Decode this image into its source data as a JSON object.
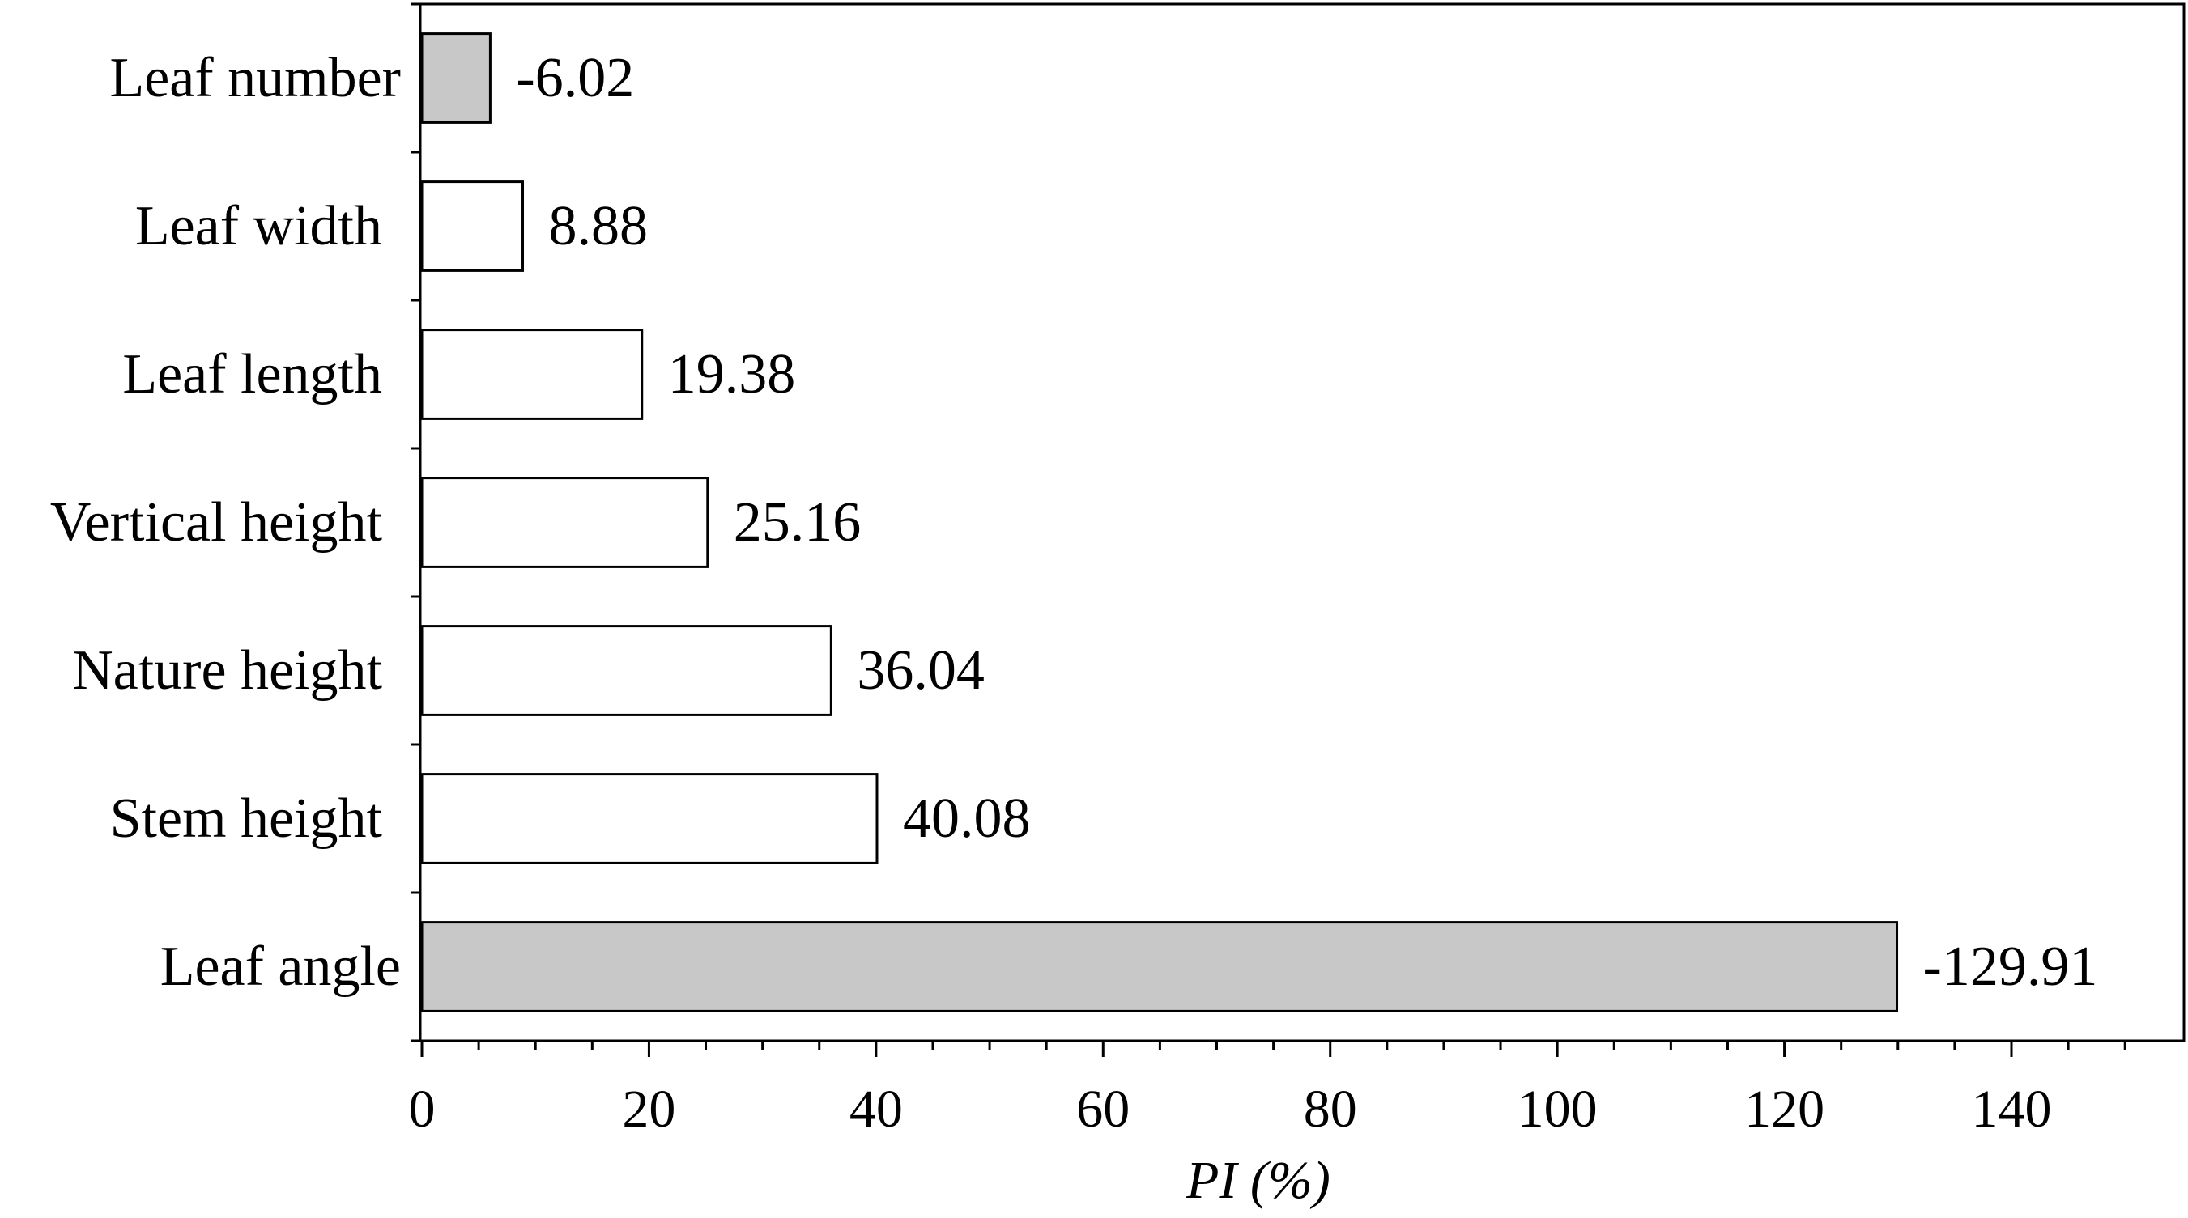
{
  "chart_data": {
    "type": "bar",
    "orientation": "horizontal",
    "categories": [
      "Leaf number",
      "Leaf width",
      "Leaf length",
      "Vertical height",
      "Nature height",
      "Stem height",
      "Leaf angle"
    ],
    "values": [
      6.02,
      8.88,
      19.38,
      25.16,
      36.04,
      40.08,
      129.91
    ],
    "labels": [
      "-6.02",
      "8.88",
      "19.38",
      "25.16",
      "36.04",
      "40.08",
      "-129.91"
    ],
    "negative": [
      true,
      false,
      false,
      false,
      false,
      false,
      true
    ],
    "bar_colors": {
      "negative": "#c8c8c8",
      "positive": "#ffffff"
    },
    "xlabel": "PI (%)",
    "ylabel": "",
    "xlim": [
      0,
      155
    ],
    "xticks": [
      0,
      20,
      40,
      60,
      80,
      100,
      120,
      140
    ],
    "xtick_labels": [
      "0",
      "20",
      "40",
      "60",
      "80",
      "100",
      "120",
      "140"
    ],
    "grid": false
  }
}
